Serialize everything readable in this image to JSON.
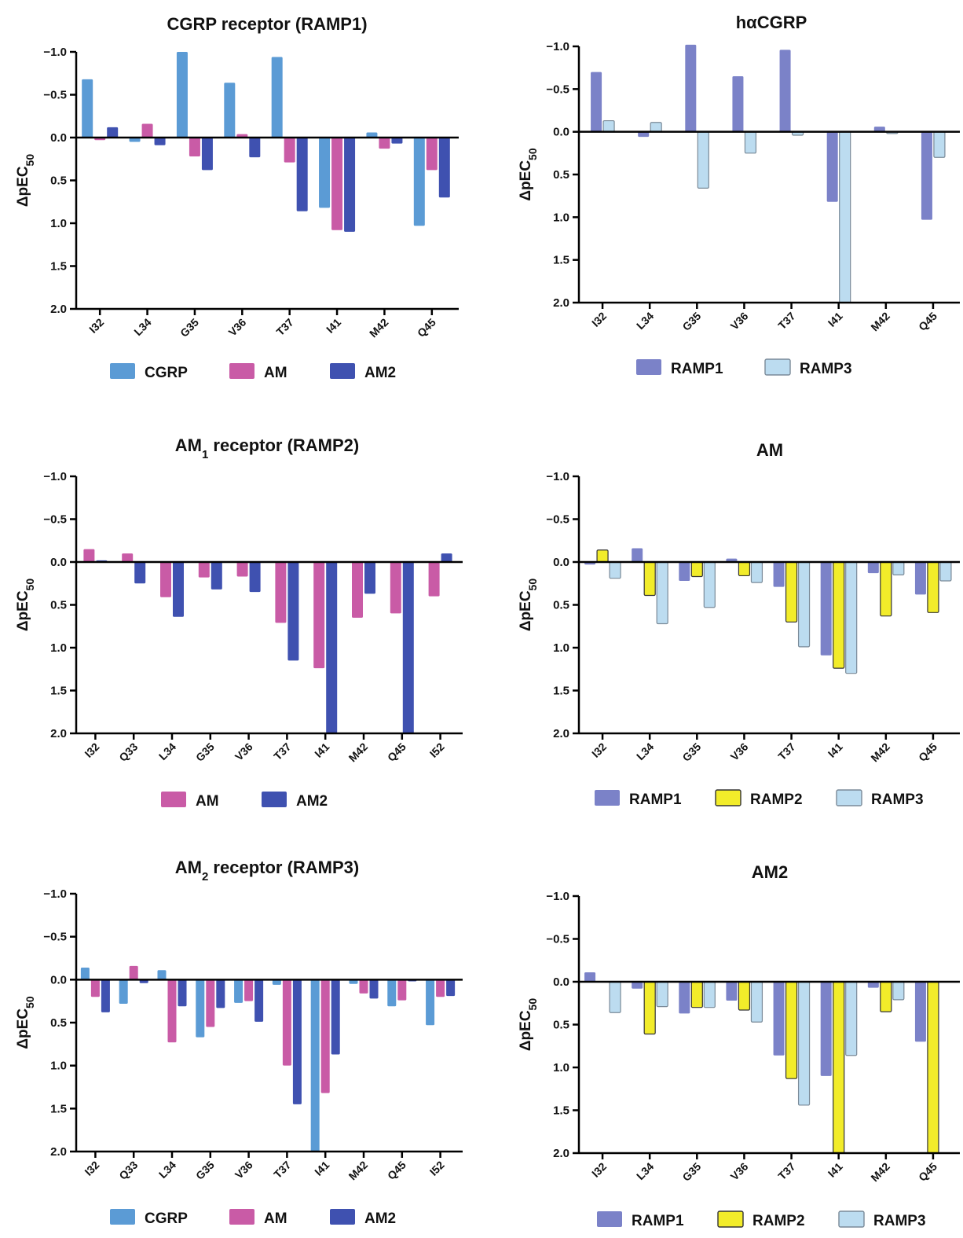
{
  "figure": {
    "colors": {
      "CGRP": "#5b9bd5",
      "AM": "#c95ba6",
      "AM2": "#3f51b0",
      "RAMP1": "#7b82c8",
      "RAMP2": "#f2ec2a",
      "RAMP3": "#bcdcf0"
    }
  },
  "chart_data": [
    {
      "type": "bar",
      "title": "CGRP receptor (RAMP1)",
      "ylabel": "ΔpEC50",
      "ylim": [
        -1.0,
        2.0
      ],
      "y_inverted": true,
      "yticks": [
        "−1.0",
        "−0.5",
        "0.0",
        "0.5",
        "1.0",
        "1.5",
        "2.0"
      ],
      "categories": [
        "I32",
        "L34",
        "G35",
        "V36",
        "T37",
        "I41",
        "M42",
        "Q45"
      ],
      "legend": "bottom",
      "series": [
        {
          "name": "CGRP",
          "values": [
            -0.68,
            0.05,
            -1.0,
            -0.64,
            -0.94,
            0.82,
            -0.06,
            1.03
          ]
        },
        {
          "name": "AM",
          "values": [
            0.03,
            -0.16,
            0.22,
            -0.04,
            0.29,
            1.08,
            0.13,
            0.38
          ]
        },
        {
          "name": "AM2",
          "values": [
            -0.12,
            0.09,
            0.38,
            0.23,
            0.86,
            1.1,
            0.07,
            0.7
          ]
        }
      ]
    },
    {
      "type": "bar",
      "title": "hαCGRP",
      "ylabel": "ΔpEC50",
      "ylim": [
        -1.0,
        2.0
      ],
      "y_inverted": true,
      "yticks": [
        "−1.0",
        "−0.5",
        "0.0",
        "0.5",
        "1.0",
        "1.5",
        "2.0"
      ],
      "categories": [
        "I32",
        "L34",
        "G35",
        "V36",
        "T37",
        "I41",
        "M42",
        "Q45"
      ],
      "legend": "bottom",
      "series": [
        {
          "name": "RAMP1",
          "values": [
            -0.7,
            0.06,
            -1.02,
            -0.65,
            -0.96,
            0.82,
            -0.06,
            1.03
          ]
        },
        {
          "name": "RAMP3",
          "values": [
            -0.13,
            -0.11,
            0.66,
            0.25,
            0.04,
            2.0,
            0.02,
            0.3
          ]
        }
      ]
    },
    {
      "type": "bar",
      "title": "AM1 receptor (RAMP2)",
      "ylabel": "ΔpEC50",
      "ylim": [
        -1.0,
        2.0
      ],
      "y_inverted": true,
      "yticks": [
        "−1.0",
        "−0.5",
        "0.0",
        "0.5",
        "1.0",
        "1.5",
        "2.0"
      ],
      "categories": [
        "I32",
        "Q33",
        "L34",
        "G35",
        "V36",
        "T37",
        "I41",
        "M42",
        "Q45",
        "I52"
      ],
      "legend": "bottom",
      "series": [
        {
          "name": "AM",
          "values": [
            -0.15,
            -0.1,
            0.41,
            0.18,
            0.17,
            0.71,
            1.24,
            0.65,
            0.6,
            0.4
          ]
        },
        {
          "name": "AM2",
          "values": [
            -0.02,
            0.25,
            0.64,
            0.32,
            0.35,
            1.15,
            2.0,
            0.37,
            2.0,
            -0.1
          ]
        }
      ]
    },
    {
      "type": "bar",
      "title": "AM",
      "ylabel": "ΔpEC50",
      "ylim": [
        -1.0,
        2.0
      ],
      "y_inverted": true,
      "yticks": [
        "−1.0",
        "−0.5",
        "0.0",
        "0.5",
        "1.0",
        "1.5",
        "2.0"
      ],
      "categories": [
        "I32",
        "L34",
        "G35",
        "V36",
        "T37",
        "I41",
        "M42",
        "Q45"
      ],
      "legend": "bottom",
      "series": [
        {
          "name": "RAMP1",
          "values": [
            0.03,
            -0.16,
            0.22,
            -0.04,
            0.29,
            1.09,
            0.13,
            0.38
          ]
        },
        {
          "name": "RAMP2",
          "values": [
            -0.14,
            0.39,
            0.17,
            0.16,
            0.7,
            1.24,
            0.63,
            0.59
          ]
        },
        {
          "name": "RAMP3",
          "values": [
            0.19,
            0.72,
            0.53,
            0.24,
            0.99,
            1.3,
            0.15,
            0.22
          ]
        }
      ]
    },
    {
      "type": "bar",
      "title": "AM2 receptor (RAMP3)",
      "ylabel": "ΔpEC50",
      "ylim": [
        -1.0,
        2.0
      ],
      "y_inverted": true,
      "yticks": [
        "−1.0",
        "−0.5",
        "0.0",
        "0.5",
        "1.0",
        "1.5",
        "2.0"
      ],
      "categories": [
        "I32",
        "Q33",
        "L34",
        "G35",
        "V36",
        "T37",
        "I41",
        "M42",
        "Q45",
        "I52"
      ],
      "legend": "bottom",
      "series": [
        {
          "name": "CGRP",
          "values": [
            -0.14,
            0.28,
            -0.11,
            0.67,
            0.27,
            0.06,
            2.0,
            0.05,
            0.31,
            0.53
          ]
        },
        {
          "name": "AM",
          "values": [
            0.2,
            -0.16,
            0.73,
            0.55,
            0.25,
            1.0,
            1.32,
            0.16,
            0.24,
            0.2
          ]
        },
        {
          "name": "AM2",
          "values": [
            0.38,
            0.04,
            0.31,
            0.33,
            0.49,
            1.45,
            0.87,
            0.22,
            0.02,
            0.19
          ]
        }
      ]
    },
    {
      "type": "bar",
      "title": "AM2",
      "ylabel": "ΔpEC50",
      "ylim": [
        -1.0,
        2.0
      ],
      "y_inverted": true,
      "yticks": [
        "−1.0",
        "−0.5",
        "0.0",
        "0.5",
        "1.0",
        "1.5",
        "2.0"
      ],
      "categories": [
        "I32",
        "L34",
        "G35",
        "V36",
        "T37",
        "I41",
        "M42",
        "Q45"
      ],
      "legend": "bottom",
      "series": [
        {
          "name": "RAMP1",
          "values": [
            -0.11,
            0.08,
            0.37,
            0.22,
            0.86,
            1.1,
            0.07,
            0.7
          ]
        },
        {
          "name": "RAMP2",
          "values": [
            0.0,
            0.61,
            0.3,
            0.33,
            1.13,
            2.0,
            0.35,
            2.0
          ]
        },
        {
          "name": "RAMP3",
          "values": [
            0.36,
            0.29,
            0.3,
            0.47,
            1.44,
            0.86,
            0.21,
            0.0
          ]
        }
      ]
    }
  ]
}
